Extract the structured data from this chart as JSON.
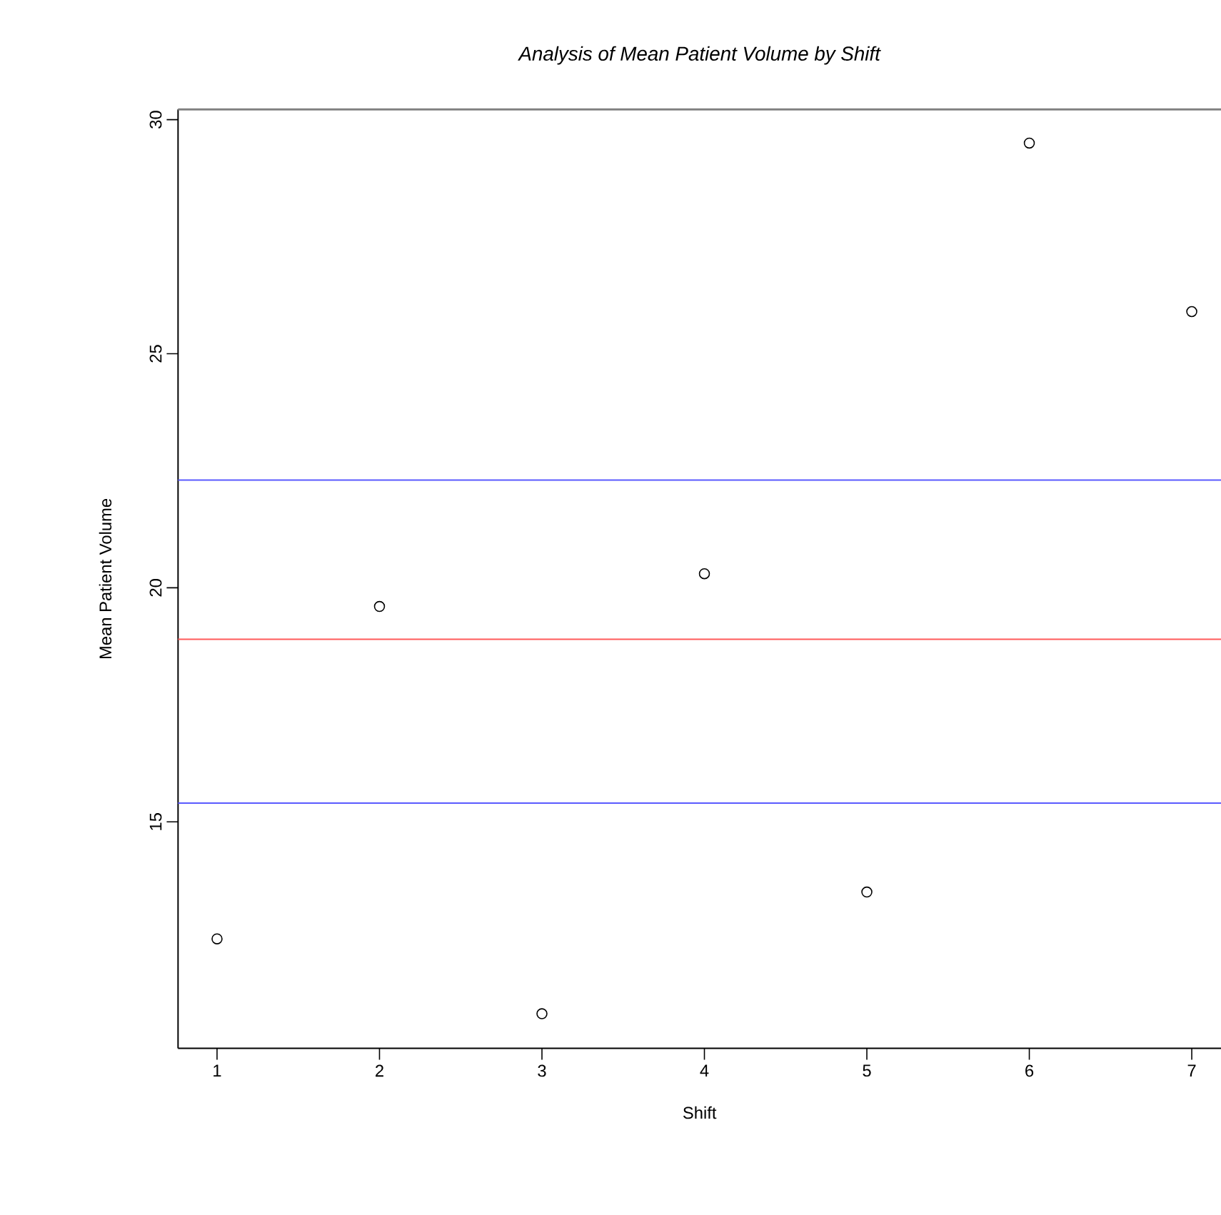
{
  "chart_data": {
    "type": "scatter",
    "title": "Analysis of Mean Patient Volume by Shift",
    "xlabel": "Shift",
    "ylabel": "Mean Patient Volume",
    "x": [
      1,
      2,
      3,
      4,
      5,
      6,
      7
    ],
    "values": [
      12.5,
      19.6,
      10.9,
      20.3,
      13.5,
      29.5,
      25.9
    ],
    "color": "#000000",
    "marker": "circle",
    "xlim": [
      0.76,
      7.18
    ],
    "xticks": [
      1,
      2,
      3,
      4,
      5,
      6,
      7
    ],
    "ylim": [
      10.16,
      30.22
    ],
    "yticks": [
      15,
      20,
      25,
      30
    ],
    "ref_lines": [
      {
        "axis": "y",
        "value": 22.3,
        "color": "#5a5aff"
      },
      {
        "axis": "y",
        "value": 18.9,
        "color": "#ff5a5a"
      },
      {
        "axis": "y",
        "value": 15.4,
        "color": "#5a5aff"
      }
    ],
    "grid": false
  }
}
